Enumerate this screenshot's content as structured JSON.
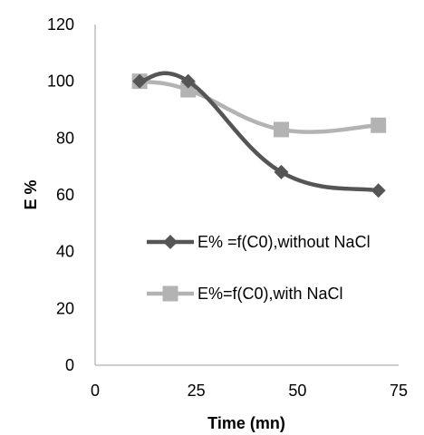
{
  "chart_data": {
    "type": "line",
    "title": "",
    "xlabel": "Time (mn)",
    "ylabel": "E %",
    "xlim": [
      0,
      75
    ],
    "ylim": [
      0,
      120
    ],
    "xticks": [
      0,
      25,
      50,
      75
    ],
    "yticks": [
      0,
      20,
      40,
      60,
      80,
      100,
      120
    ],
    "grid": false,
    "legend_position": "right-middle",
    "smooth": true,
    "series": [
      {
        "name": "E% =f(C0),without NaCl",
        "marker": "diamond",
        "color": "#555555",
        "x": [
          11,
          23,
          46,
          70
        ],
        "y": [
          100,
          100,
          68,
          61.5
        ]
      },
      {
        "name": "E%=f(C0),with NaCl",
        "marker": "square",
        "color": "#b3b3b3",
        "x": [
          11,
          23,
          46,
          70
        ],
        "y": [
          100,
          97,
          83,
          84.5
        ]
      }
    ]
  }
}
